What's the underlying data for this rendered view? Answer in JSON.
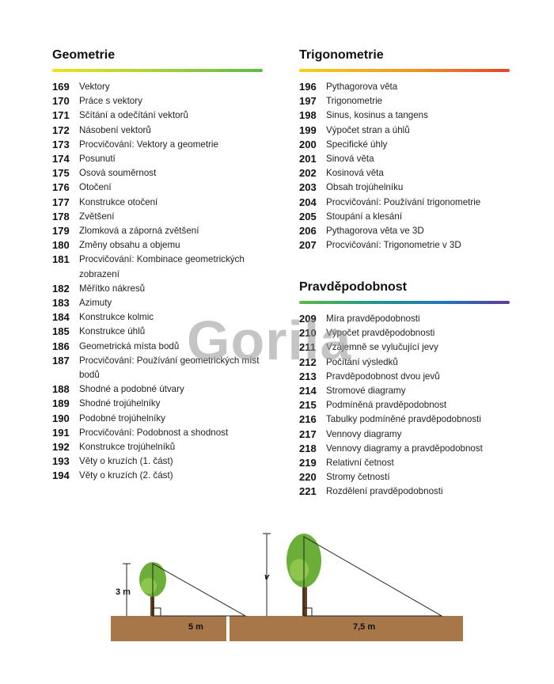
{
  "sections": [
    {
      "title": "Geometrie",
      "items": [
        {
          "number": 169,
          "title": "Vektory"
        },
        {
          "number": 170,
          "title": "Práce s vektory"
        },
        {
          "number": 171,
          "title": "Sčítání a odečítání vektorů"
        },
        {
          "number": 172,
          "title": "Násobení vektorů"
        },
        {
          "number": 173,
          "title": "Procvičování: Vektory a geometrie"
        },
        {
          "number": 174,
          "title": "Posunutí"
        },
        {
          "number": 175,
          "title": "Osová souměrnost"
        },
        {
          "number": 176,
          "title": "Otočení"
        },
        {
          "number": 177,
          "title": "Konstrukce otočení"
        },
        {
          "number": 178,
          "title": "Zvětšení"
        },
        {
          "number": 179,
          "title": "Zlomková a záporná zvětšení"
        },
        {
          "number": 180,
          "title": "Změny obsahu a objemu"
        },
        {
          "number": 181,
          "title": "Procvičování: Kombinace geometrických zobrazení"
        },
        {
          "number": 182,
          "title": "Měřítko nákresů"
        },
        {
          "number": 183,
          "title": "Azimuty"
        },
        {
          "number": 184,
          "title": "Konstrukce kolmic"
        },
        {
          "number": 185,
          "title": "Konstrukce úhlů"
        },
        {
          "number": 186,
          "title": "Geometrická místa bodů"
        },
        {
          "number": 187,
          "title": "Procvičování: Používání geometrických míst bodů"
        },
        {
          "number": 188,
          "title": "Shodné a podobné útvary"
        },
        {
          "number": 189,
          "title": "Shodné trojúhelníky"
        },
        {
          "number": 190,
          "title": "Podobné trojúhelníky"
        },
        {
          "number": 191,
          "title": "Procvičování: Podobnost a shodnost"
        },
        {
          "number": 192,
          "title": "Konstrukce trojúhelníků"
        },
        {
          "number": 193,
          "title": "Věty o kruzích (1. část)"
        },
        {
          "number": 194,
          "title": "Věty o kruzích (2. část)"
        }
      ]
    },
    {
      "title": "Trigonometrie",
      "items": [
        {
          "number": 196,
          "title": "Pythagorova věta"
        },
        {
          "number": 197,
          "title": "Trigonometrie"
        },
        {
          "number": 198,
          "title": "Sinus, kosinus a tangens"
        },
        {
          "number": 199,
          "title": "Výpočet stran a úhlů"
        },
        {
          "number": 200,
          "title": "Specifické úhly"
        },
        {
          "number": 201,
          "title": "Sinová věta"
        },
        {
          "number": 202,
          "title": "Kosinová věta"
        },
        {
          "number": 203,
          "title": "Obsah trojúhelníku"
        },
        {
          "number": 204,
          "title": "Procvičování: Používání trigonometrie"
        },
        {
          "number": 205,
          "title": "Stoupání a klesání"
        },
        {
          "number": 206,
          "title": "Pythagorova věta ve 3D"
        },
        {
          "number": 207,
          "title": "Procvičování: Trigonometrie v 3D"
        }
      ]
    },
    {
      "title": "Pravděpodobnost",
      "items": [
        {
          "number": 209,
          "title": "Míra pravděpodobnosti"
        },
        {
          "number": 210,
          "title": "Výpočet pravděpodobnosti"
        },
        {
          "number": 211,
          "title": "Vzájemně se vylučující jevy"
        },
        {
          "number": 212,
          "title": "Počítání výsledků"
        },
        {
          "number": 213,
          "title": "Pravděpodobnost dvou jevů"
        },
        {
          "number": 214,
          "title": "Stromové diagramy"
        },
        {
          "number": 215,
          "title": "Podmíněná pravděpodobnost"
        },
        {
          "number": 216,
          "title": "Tabulky podmíněné pravděpodobnosti"
        },
        {
          "number": 217,
          "title": "Vennovy diagramy"
        },
        {
          "number": 218,
          "title": "Vennovy diagramy a pravděpodobnost"
        },
        {
          "number": 219,
          "title": "Relativní četnost"
        },
        {
          "number": 220,
          "title": "Stromy četností"
        },
        {
          "number": 221,
          "title": "Rozdělení pravděpodobnosti"
        }
      ]
    }
  ],
  "illustration": {
    "small_height": "3 m",
    "small_base": "5 m",
    "large_height": "v",
    "large_base": "7,5 m"
  },
  "watermark": "Gorila"
}
